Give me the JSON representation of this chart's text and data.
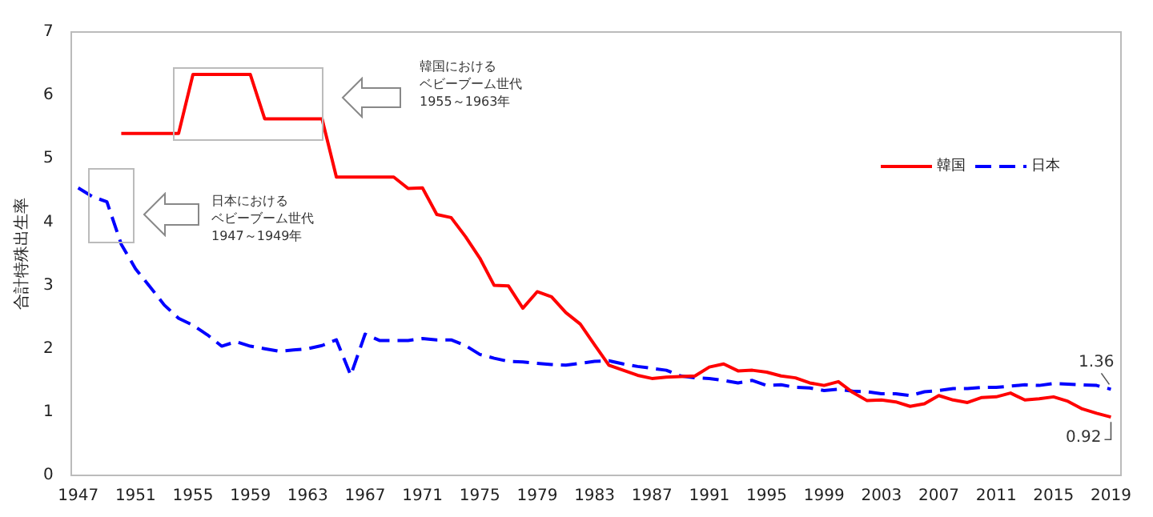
{
  "chart_data": {
    "type": "line",
    "ylabel": "合計特殊出生率",
    "x": [
      1947,
      1948,
      1949,
      1950,
      1951,
      1952,
      1953,
      1954,
      1955,
      1956,
      1957,
      1958,
      1959,
      1960,
      1961,
      1962,
      1963,
      1964,
      1965,
      1966,
      1967,
      1968,
      1969,
      1970,
      1971,
      1972,
      1973,
      1974,
      1975,
      1976,
      1977,
      1978,
      1979,
      1980,
      1981,
      1982,
      1983,
      1984,
      1985,
      1986,
      1987,
      1988,
      1989,
      1990,
      1991,
      1992,
      1993,
      1994,
      1995,
      1996,
      1997,
      1998,
      1999,
      2000,
      2001,
      2002,
      2003,
      2004,
      2005,
      2006,
      2007,
      2008,
      2009,
      2010,
      2011,
      2012,
      2013,
      2014,
      2015,
      2016,
      2017,
      2018,
      2019
    ],
    "series": [
      {
        "name": "韓国",
        "color": "#ff0000",
        "line_style": "solid",
        "values": [
          null,
          null,
          null,
          5.4,
          5.4,
          5.4,
          5.4,
          5.4,
          6.33,
          6.33,
          6.33,
          6.33,
          6.33,
          5.63,
          5.63,
          5.63,
          5.63,
          5.63,
          4.71,
          4.71,
          4.71,
          4.71,
          4.71,
          4.53,
          4.54,
          4.12,
          4.07,
          3.77,
          3.43,
          3.0,
          2.99,
          2.64,
          2.9,
          2.82,
          2.57,
          2.39,
          2.06,
          1.74,
          1.66,
          1.58,
          1.53,
          1.55,
          1.56,
          1.57,
          1.71,
          1.76,
          1.65,
          1.66,
          1.63,
          1.57,
          1.54,
          1.46,
          1.42,
          1.48,
          1.31,
          1.18,
          1.19,
          1.16,
          1.09,
          1.13,
          1.26,
          1.19,
          1.15,
          1.23,
          1.24,
          1.3,
          1.19,
          1.21,
          1.24,
          1.17,
          1.05,
          0.98,
          0.92
        ]
      },
      {
        "name": "日本",
        "color": "#0000ff",
        "line_style": "dashed",
        "values": [
          4.54,
          4.4,
          4.32,
          3.65,
          3.26,
          2.98,
          2.69,
          2.48,
          2.37,
          2.22,
          2.04,
          2.11,
          2.04,
          2.0,
          1.96,
          1.98,
          2.0,
          2.05,
          2.14,
          1.58,
          2.23,
          2.13,
          2.13,
          2.13,
          2.16,
          2.14,
          2.14,
          2.05,
          1.91,
          1.85,
          1.8,
          1.79,
          1.77,
          1.75,
          1.74,
          1.77,
          1.8,
          1.81,
          1.76,
          1.72,
          1.69,
          1.66,
          1.57,
          1.54,
          1.53,
          1.5,
          1.46,
          1.5,
          1.42,
          1.43,
          1.39,
          1.38,
          1.34,
          1.36,
          1.33,
          1.32,
          1.29,
          1.29,
          1.26,
          1.32,
          1.34,
          1.37,
          1.37,
          1.39,
          1.39,
          1.41,
          1.43,
          1.42,
          1.45,
          1.44,
          1.43,
          1.42,
          1.36
        ]
      }
    ],
    "xlim": [
      1946.5,
      2019.7
    ],
    "xticks": [
      1947,
      1951,
      1955,
      1959,
      1963,
      1967,
      1971,
      1975,
      1979,
      1983,
      1987,
      1991,
      1995,
      1999,
      2003,
      2007,
      2011,
      2015,
      2019
    ],
    "ylim": [
      0,
      7
    ],
    "yticks": [
      0,
      1,
      2,
      3,
      4,
      5,
      6,
      7
    ],
    "grid": false,
    "legend": "right",
    "marker": "none",
    "annotations": [
      "韓国における",
      "ベビーブーム世代",
      "1955～1963年",
      "日本における",
      "ベビーブーム世代",
      "1947～1949年",
      {
        "text": "1.36",
        "x": 2019,
        "y": 1.36
      },
      {
        "text": "0.92",
        "x": 2019,
        "y": 0.92
      }
    ]
  }
}
